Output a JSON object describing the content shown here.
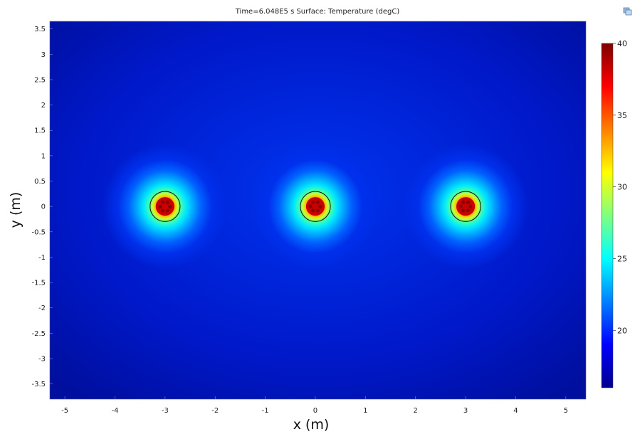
{
  "chart_data": {
    "type": "heatmap",
    "title": "Time=6.048E5 s   Surface: Temperature (degC)",
    "xlabel": "x (m)",
    "ylabel": "y (m)",
    "xlim": [
      -5.3,
      5.4
    ],
    "ylim": [
      -3.8,
      3.65
    ],
    "x_ticks": [
      -5,
      -4,
      -3,
      -2,
      -1,
      0,
      1,
      2,
      3,
      4,
      5
    ],
    "y_ticks": [
      3.5,
      3,
      2.5,
      2,
      1.5,
      1,
      0.5,
      0,
      -0.5,
      -1,
      -1.5,
      -2,
      -2.5,
      -3,
      -3.5
    ],
    "x_tick_labels": [
      "-5",
      "-4",
      "-3",
      "-2",
      "-1",
      "0",
      "1",
      "2",
      "3",
      "4",
      "5"
    ],
    "y_tick_labels": [
      "3.5",
      "3",
      "2.5",
      "2",
      "1.5",
      "1",
      "0.5",
      "0",
      "-0.5",
      "-1",
      "-1.5",
      "-2",
      "-2.5",
      "-3",
      "-3.5"
    ],
    "colorbar": {
      "min": 16,
      "max": 40,
      "ticks": [
        20,
        25,
        30,
        35,
        40
      ],
      "tick_labels": [
        "20",
        "25",
        "30",
        "35",
        "40"
      ]
    },
    "background_value": 17,
    "heat_sources": [
      {
        "x": -3,
        "y": 0,
        "radius": 0.3,
        "peak_temperature": 40
      },
      {
        "x": 0,
        "y": 0,
        "radius": 0.3,
        "peak_temperature": 40
      },
      {
        "x": 3,
        "y": 0,
        "radius": 0.3,
        "peak_temperature": 40
      }
    ],
    "grid": false,
    "legend": "colorbar-right"
  }
}
